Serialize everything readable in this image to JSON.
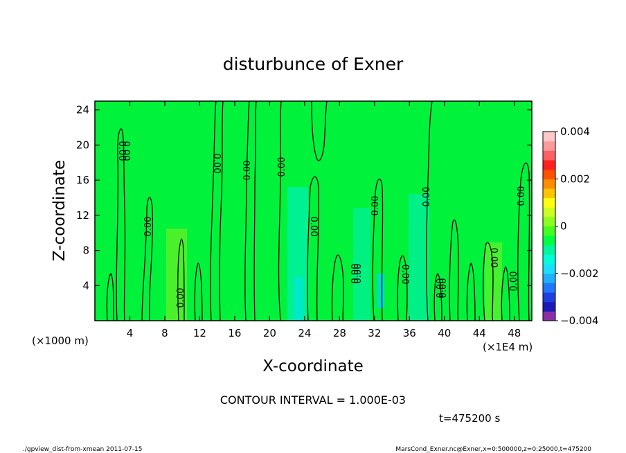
{
  "chart_data": {
    "type": "heatmap",
    "title": "disturbunce of Exner",
    "xlabel": "X-coordinate",
    "ylabel": "Z-coordinate",
    "x_unit_left": "(×1000 m)",
    "x_unit_right": "(×1E4 m)",
    "xlim": [
      0,
      50
    ],
    "ylim": [
      0,
      25
    ],
    "xticks": [
      "4",
      "8",
      "12",
      "16",
      "20",
      "24",
      "28",
      "32",
      "36",
      "40",
      "44",
      "48"
    ],
    "yticks": [
      "4",
      "8",
      "12",
      "16",
      "20",
      "24"
    ],
    "colorbar": {
      "range": [
        -0.004,
        0.004
      ],
      "labels": [
        "0.004",
        "0.002",
        "0",
        "−0.002",
        "−0.004"
      ],
      "colors": [
        "#8c2fa6",
        "#1a1ab8",
        "#1f3fe0",
        "#1f78ff",
        "#1fb0ff",
        "#19e0ff",
        "#00ffd8",
        "#00f7a0",
        "#00ff40",
        "#40ff20",
        "#8cff20",
        "#ccff20",
        "#ffff10",
        "#ffc400",
        "#ff8c00",
        "#ff5000",
        "#ff2020",
        "#ff6060",
        "#ff9a9a",
        "#ffc8c8"
      ]
    },
    "contour_labels": [
      "0.00",
      "0.00",
      "0.00",
      "0.00",
      "0.00",
      "0.00",
      "0.00",
      "0.00",
      "0.00",
      "0.00",
      "0.00",
      "0.00",
      "0.00",
      "0.00",
      "0.00",
      "0.00",
      "0.00",
      "0.00"
    ],
    "contour_interval": "CONTOUR INTERVAL = 1.000E-03",
    "time": "t=475200 s"
  },
  "footer": {
    "left": "./gpview_dist-from-xmean  2011-07-15",
    "right": "MarsCond_Exner.nc@Exner,x=0:500000,z=0:25000,t=475200"
  }
}
